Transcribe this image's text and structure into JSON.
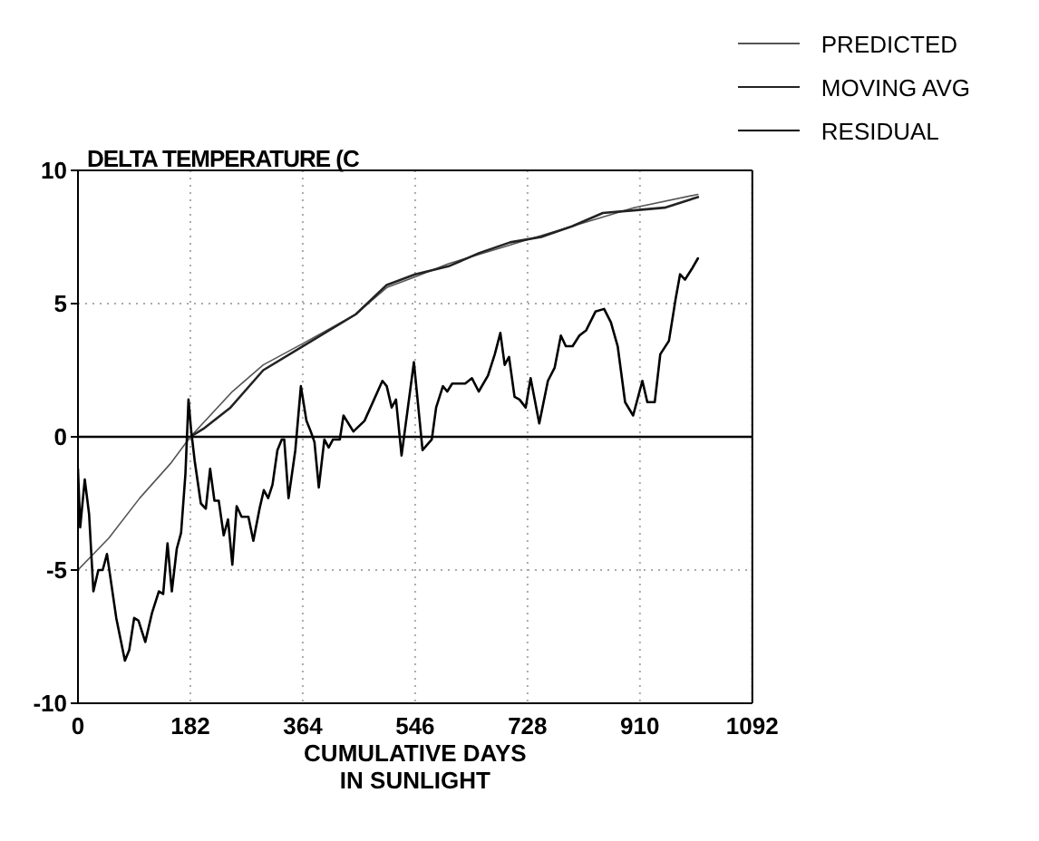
{
  "chart_data": {
    "type": "line",
    "ylabel": "DELTA TEMPERATURE (C",
    "xlabel": "CUMULATIVE DAYS\nIN SUNLIGHT",
    "xlim": [
      0,
      1092
    ],
    "xticks": [
      0,
      182,
      364,
      546,
      728,
      910,
      1092
    ],
    "ylim": [
      -10,
      10
    ],
    "yticks": [
      -10,
      -5,
      0,
      5,
      10
    ],
    "grid": true,
    "legend": "top right",
    "marker": "none",
    "ref_lines": [
      {
        "axis": "y",
        "value": 0,
        "color": "#000000"
      }
    ],
    "series": [
      {
        "name": "PREDICTED",
        "color": "#555555",
        "x": [
          0,
          50,
          100,
          150,
          182,
          250,
          300,
          364,
          450,
          500,
          546,
          600,
          728,
          800,
          900,
          1004
        ],
        "values": [
          -5.0,
          -3.8,
          -2.3,
          -1.0,
          0,
          1.7,
          2.7,
          3.5,
          4.6,
          5.6,
          6.0,
          6.5,
          7.4,
          7.9,
          8.6,
          9.1
        ]
      },
      {
        "name": "MOVING AVG",
        "color": "#222222",
        "x": [
          182,
          203,
          247,
          300,
          364,
          450,
          500,
          546,
          600,
          650,
          700,
          750,
          800,
          850,
          900,
          950,
          1004
        ],
        "values": [
          0,
          0.3,
          1.1,
          2.5,
          3.4,
          4.6,
          5.7,
          6.1,
          6.4,
          6.9,
          7.3,
          7.5,
          7.9,
          8.4,
          8.5,
          8.6,
          9.0
        ]
      },
      {
        "name": "RESIDUAL",
        "color": "#000000",
        "x": [
          0,
          3.6,
          11,
          18,
          25,
          33,
          40,
          47,
          62,
          76,
          83,
          91,
          98,
          109,
          120,
          131,
          138,
          145,
          152,
          160,
          167,
          174,
          179,
          183,
          189,
          199,
          207,
          214,
          221,
          228,
          236,
          243,
          250,
          257,
          265,
          276,
          284,
          294,
          301,
          308,
          315,
          323,
          330,
          334,
          341,
          352,
          361,
          370,
          377,
          383,
          390,
          399,
          406,
          413,
          424,
          430,
          446,
          464,
          493,
          500,
          508,
          515,
          524,
          544,
          558,
          573,
          580,
          591,
          598,
          606,
          617,
          627,
          638,
          649,
          664,
          675,
          684,
          691,
          698,
          707,
          715,
          725,
          733,
          747,
          761,
          772,
          782,
          790,
          801,
          812,
          823,
          838,
          852,
          863,
          874,
          886,
          899,
          914,
          922,
          934,
          943,
          957,
          968,
          975,
          983,
          994,
          1004
        ],
        "values": [
          -1.2,
          -3.4,
          -1.6,
          -2.9,
          -5.8,
          -5.0,
          -5.0,
          -4.4,
          -6.8,
          -8.4,
          -8.0,
          -6.8,
          -6.9,
          -7.7,
          -6.6,
          -5.8,
          -5.9,
          -4.0,
          -5.8,
          -4.2,
          -3.6,
          -1.4,
          1.4,
          0.3,
          -0.9,
          -2.5,
          -2.7,
          -1.2,
          -2.4,
          -2.4,
          -3.7,
          -3.1,
          -4.8,
          -2.6,
          -3.0,
          -3.0,
          -3.9,
          -2.7,
          -2.0,
          -2.3,
          -1.8,
          -0.5,
          -0.1,
          -0.1,
          -2.3,
          -0.5,
          1.9,
          0.6,
          0.2,
          -0.2,
          -1.9,
          -0.1,
          -0.4,
          -0.1,
          -0.1,
          0.8,
          0.2,
          0.6,
          2.1,
          1.9,
          1.1,
          1.4,
          -0.7,
          2.8,
          -0.5,
          -0.1,
          1.1,
          1.9,
          1.7,
          2.0,
          2.0,
          2.0,
          2.2,
          1.7,
          2.3,
          3.1,
          3.9,
          2.7,
          3.0,
          1.5,
          1.4,
          1.1,
          2.2,
          0.5,
          2.1,
          2.6,
          3.8,
          3.4,
          3.4,
          3.8,
          4.0,
          4.7,
          4.8,
          4.3,
          3.4,
          1.3,
          0.8,
          2.1,
          1.3,
          1.3,
          3.1,
          3.6,
          5.2,
          6.1,
          5.9,
          6.3,
          6.7
        ]
      }
    ]
  }
}
